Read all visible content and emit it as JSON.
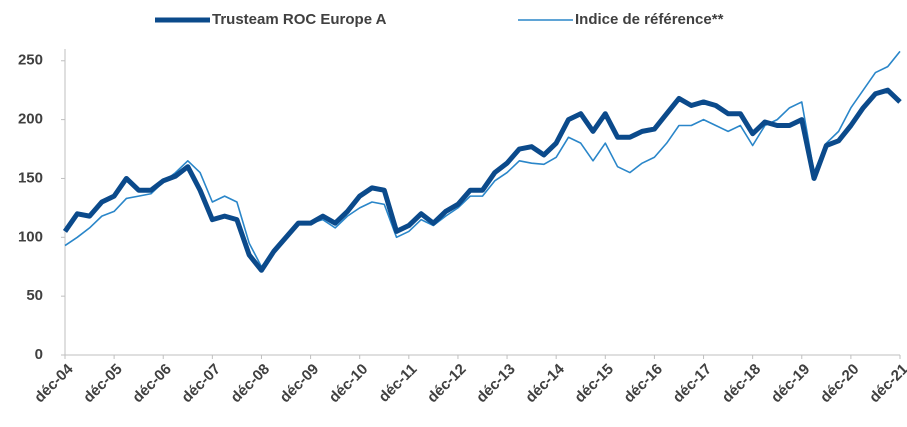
{
  "chart_data": {
    "type": "line",
    "categories": [
      "déc-04",
      null,
      null,
      null,
      "déc-05",
      null,
      null,
      null,
      "déc-06",
      null,
      null,
      null,
      "déc-07",
      null,
      null,
      null,
      "déc-08",
      null,
      null,
      null,
      "déc-09",
      null,
      null,
      null,
      "déc-10",
      null,
      null,
      null,
      "déc-11",
      null,
      null,
      null,
      "déc-12",
      null,
      null,
      null,
      "déc-13",
      null,
      null,
      null,
      "déc-14",
      null,
      null,
      null,
      "déc-15",
      null,
      null,
      null,
      "déc-16",
      null,
      null,
      null,
      "déc-17",
      null,
      null,
      null,
      "déc-18",
      null,
      null,
      null,
      "déc-19",
      null,
      null,
      null,
      "déc-20",
      null,
      null,
      null,
      "déc-21"
    ],
    "series": [
      {
        "name": "Trusteam ROC Europe A",
        "color": "#0b4a8b",
        "width": 5,
        "values": [
          105,
          120,
          118,
          130,
          135,
          150,
          140,
          140,
          148,
          152,
          160,
          140,
          115,
          118,
          115,
          85,
          72,
          88,
          100,
          112,
          112,
          118,
          112,
          122,
          135,
          142,
          140,
          105,
          110,
          120,
          112,
          122,
          128,
          140,
          140,
          155,
          163,
          175,
          177,
          170,
          180,
          200,
          205,
          190,
          205,
          185,
          185,
          190,
          192,
          205,
          218,
          212,
          215,
          212,
          205,
          205,
          188,
          198,
          195,
          195,
          200,
          150,
          178,
          182,
          195,
          210,
          222,
          225,
          215
        ]
      },
      {
        "name": "Indice de référence**",
        "color": "#2a86c9",
        "width": 1.6,
        "values": [
          93,
          100,
          108,
          118,
          122,
          133,
          135,
          137,
          147,
          155,
          165,
          155,
          130,
          135,
          130,
          95,
          75,
          88,
          100,
          112,
          112,
          115,
          108,
          118,
          125,
          130,
          128,
          100,
          105,
          115,
          110,
          118,
          125,
          135,
          135,
          148,
          155,
          165,
          163,
          162,
          168,
          185,
          180,
          165,
          180,
          160,
          155,
          163,
          168,
          180,
          195,
          195,
          200,
          195,
          190,
          195,
          178,
          195,
          200,
          210,
          215,
          155,
          180,
          190,
          210,
          225,
          240,
          245,
          258
        ]
      }
    ],
    "ylim": [
      0,
      260
    ],
    "yticks": [
      0,
      50,
      100,
      150,
      200,
      250
    ],
    "grid": false
  }
}
